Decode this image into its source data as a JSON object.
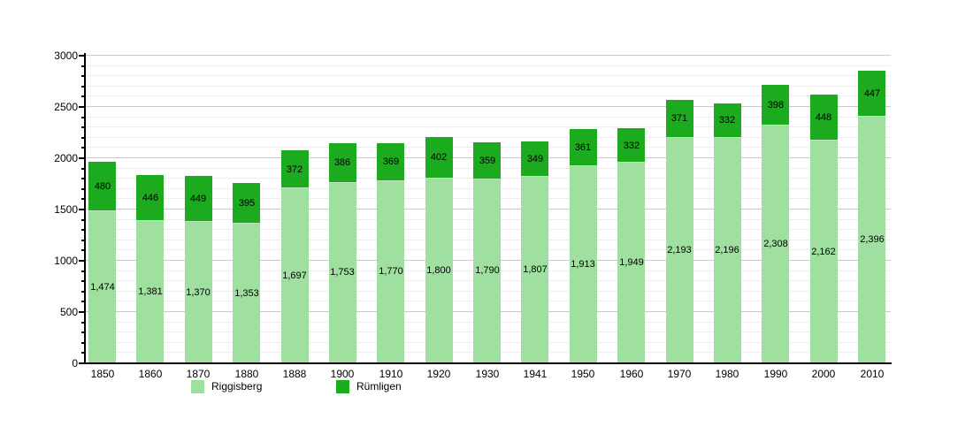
{
  "chart_data": {
    "type": "bar",
    "stacked": true,
    "title": "",
    "xlabel": "",
    "ylabel": "",
    "categories": [
      "1850",
      "1860",
      "1870",
      "1880",
      "1888",
      "1900",
      "1910",
      "1920",
      "1930",
      "1941",
      "1950",
      "1960",
      "1970",
      "1980",
      "1990",
      "2000",
      "2010"
    ],
    "series": [
      {
        "name": "Riggisberg",
        "color": "#9fdf9f",
        "values": [
          1474,
          1381,
          1370,
          1353,
          1697,
          1753,
          1770,
          1800,
          1790,
          1807,
          1913,
          1949,
          2193,
          2196,
          2308,
          2162,
          2396
        ]
      },
      {
        "name": "Rümligen",
        "color": "#1caa1f",
        "values": [
          480,
          446,
          449,
          395,
          372,
          386,
          369,
          402,
          359,
          349,
          361,
          332,
          371,
          332,
          398,
          448,
          447
        ]
      }
    ],
    "ylim": [
      0,
      3000
    ],
    "y_major_step": 500,
    "y_minor_step": 100,
    "y_tick_labels": [
      "0",
      "500",
      "1000",
      "1500",
      "2000",
      "2500",
      "3000"
    ],
    "grid": true,
    "value_labels": true,
    "legend_position": "bottom"
  }
}
